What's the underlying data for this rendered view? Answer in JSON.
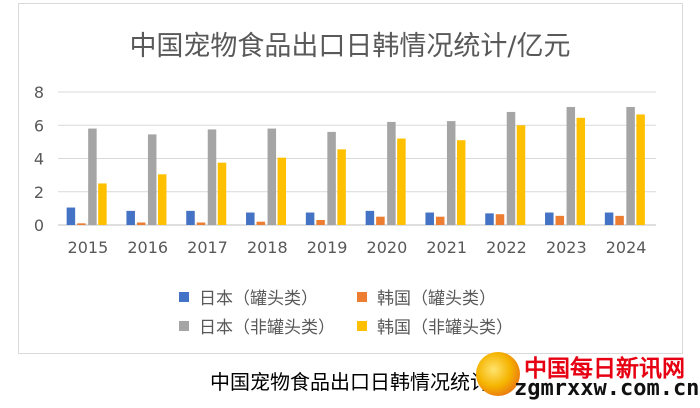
{
  "chart_data": {
    "type": "bar",
    "title": "中国宠物食品出口日韩情况统计/亿元",
    "categories": [
      "2015",
      "2016",
      "2017",
      "2018",
      "2019",
      "2020",
      "2021",
      "2022",
      "2023",
      "2024"
    ],
    "series": [
      {
        "name": "日本（罐头类）",
        "color": "#4472c4",
        "values": [
          1.05,
          0.85,
          0.85,
          0.75,
          0.75,
          0.85,
          0.75,
          0.7,
          0.75,
          0.75
        ]
      },
      {
        "name": "韩国（罐头类）",
        "color": "#ed7d31",
        "values": [
          0.1,
          0.15,
          0.15,
          0.2,
          0.3,
          0.5,
          0.5,
          0.65,
          0.55,
          0.55
        ]
      },
      {
        "name": "日本（非罐头类）",
        "color": "#a5a5a5",
        "values": [
          5.8,
          5.45,
          5.75,
          5.8,
          5.6,
          6.2,
          6.25,
          6.8,
          7.1,
          7.1
        ]
      },
      {
        "name": "韩国（非罐头类）",
        "color": "#ffc000",
        "values": [
          2.5,
          3.05,
          3.75,
          4.05,
          4.55,
          5.2,
          5.1,
          6.0,
          6.45,
          6.65
        ]
      }
    ],
    "yticks": [
      0,
      2,
      4,
      6,
      8
    ],
    "ylim": [
      0,
      8
    ],
    "grid": true,
    "legend_position": "bottom"
  },
  "caption": "中国宠物食品出口日韩情况统计",
  "watermark": {
    "title": "中国每日新讯网",
    "url": "zgmrxxw.com.cn"
  }
}
